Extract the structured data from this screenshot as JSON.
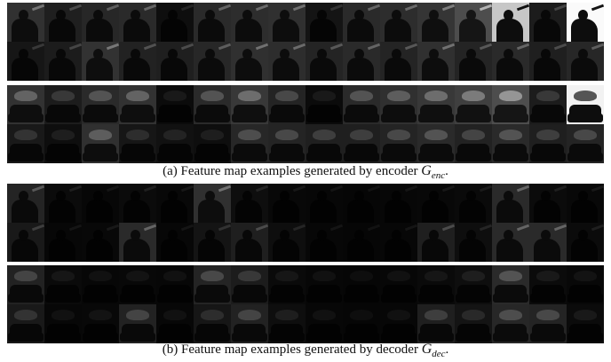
{
  "figure": {
    "caption_a": {
      "prefix": "(a) Feature map examples generated by encoder ",
      "symbol": "G",
      "subscript": "enc",
      "suffix": "."
    },
    "caption_b": {
      "prefix": "(b) Feature map examples generated by decoder ",
      "symbol": "G",
      "subscript": "dec",
      "suffix": "."
    },
    "panels": [
      {
        "id": "encoder-chair",
        "scene": "chair",
        "brightness": [
          [
            0.35,
            0.22,
            0.28,
            0.3,
            0.1,
            0.3,
            0.32,
            0.34,
            0.14,
            0.3,
            0.32,
            0.38,
            0.55,
            0.78,
            0.2,
            0.98
          ],
          [
            0.16,
            0.2,
            0.36,
            0.24,
            0.22,
            0.28,
            0.34,
            0.32,
            0.26,
            0.3,
            0.26,
            0.34,
            0.26,
            0.3,
            0.22,
            0.28
          ]
        ]
      },
      {
        "id": "encoder-sofa",
        "scene": "sofa",
        "brightness": [
          [
            0.36,
            0.2,
            0.3,
            0.36,
            0.08,
            0.3,
            0.4,
            0.26,
            0.08,
            0.3,
            0.34,
            0.4,
            0.45,
            0.55,
            0.2,
            0.95
          ],
          [
            0.18,
            0.1,
            0.34,
            0.16,
            0.12,
            0.1,
            0.28,
            0.26,
            0.22,
            0.22,
            0.26,
            0.3,
            0.24,
            0.3,
            0.22,
            0.26
          ]
        ]
      },
      {
        "id": "decoder-chair",
        "scene": "chair",
        "brightness": [
          [
            0.26,
            0.08,
            0.05,
            0.08,
            0.06,
            0.34,
            0.1,
            0.06,
            0.05,
            0.04,
            0.05,
            0.06,
            0.07,
            0.3,
            0.08,
            0.06
          ],
          [
            0.18,
            0.05,
            0.06,
            0.3,
            0.05,
            0.14,
            0.22,
            0.1,
            0.05,
            0.04,
            0.05,
            0.22,
            0.1,
            0.3,
            0.3,
            0.08
          ]
        ]
      },
      {
        "id": "decoder-sofa",
        "scene": "sofa",
        "brightness": [
          [
            0.24,
            0.07,
            0.05,
            0.06,
            0.05,
            0.26,
            0.2,
            0.07,
            0.05,
            0.04,
            0.05,
            0.07,
            0.1,
            0.3,
            0.08,
            0.06
          ],
          [
            0.18,
            0.05,
            0.06,
            0.24,
            0.05,
            0.16,
            0.24,
            0.1,
            0.05,
            0.04,
            0.05,
            0.22,
            0.14,
            0.28,
            0.26,
            0.08
          ]
        ]
      }
    ]
  }
}
